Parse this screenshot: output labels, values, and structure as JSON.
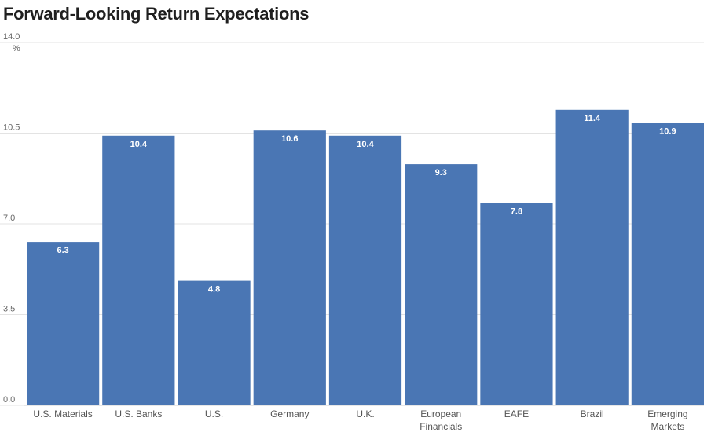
{
  "title": "Forward-Looking Return Expectations",
  "chart_data": {
    "type": "bar",
    "title": "Forward-Looking Return Expectations",
    "categories": [
      "U.S. Materials",
      "U.S. Banks",
      "U.S.",
      "Germany",
      "U.K.",
      "European Financials",
      "EAFE",
      "Brazil",
      "Emerging Markets"
    ],
    "values": [
      6.3,
      10.4,
      4.8,
      10.6,
      10.4,
      9.3,
      7.8,
      11.4,
      10.9
    ],
    "data_labels": [
      "6.3",
      "10.4",
      "4.8",
      "10.6",
      "10.4",
      "9.3",
      "7.8",
      "11.4",
      "10.9"
    ],
    "ylim": [
      0,
      14
    ],
    "yticks": [
      0,
      3.5,
      7,
      10.5,
      14
    ],
    "ytick_labels": [
      "0.0",
      "3.5",
      "7.0",
      "10.5",
      "14.0"
    ],
    "yunit": "%",
    "xlabel": "",
    "ylabel": "",
    "grid": true,
    "bar_color": "#4a76b4",
    "grid_color": "#e3e3e3"
  }
}
